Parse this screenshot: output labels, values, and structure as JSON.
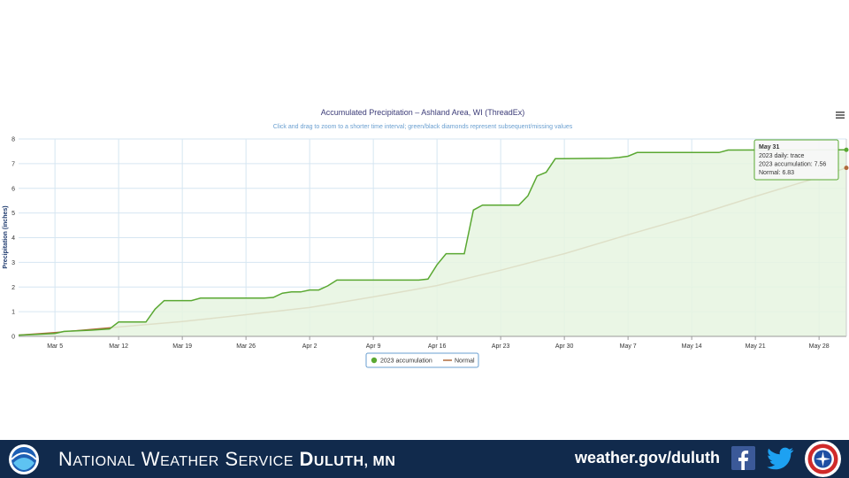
{
  "chart_data": {
    "type": "area",
    "title": "Accumulated Precipitation – Ashland Area, WI (ThreadEx)",
    "subtitle": "Click and drag to zoom to a shorter time interval; green/black diamonds represent subsequent/missing values",
    "ylabel": "Precipitation (inches)",
    "xlabel": "",
    "ylim": [
      0,
      8
    ],
    "yticks": [
      "0",
      "1",
      "2",
      "3",
      "4",
      "5",
      "6",
      "7",
      "8"
    ],
    "xlim": [
      "2023-03-01",
      "2023-05-31"
    ],
    "xticks": [
      {
        "label": "Mar 5",
        "date": "2023-03-05"
      },
      {
        "label": "Mar 12",
        "date": "2023-03-12"
      },
      {
        "label": "Mar 19",
        "date": "2023-03-19"
      },
      {
        "label": "Mar 26",
        "date": "2023-03-26"
      },
      {
        "label": "Apr 2",
        "date": "2023-04-02"
      },
      {
        "label": "Apr 9",
        "date": "2023-04-09"
      },
      {
        "label": "Apr 16",
        "date": "2023-04-16"
      },
      {
        "label": "Apr 23",
        "date": "2023-04-23"
      },
      {
        "label": "Apr 30",
        "date": "2023-04-30"
      },
      {
        "label": "May 7",
        "date": "2023-05-07"
      },
      {
        "label": "May 14",
        "date": "2023-05-14"
      },
      {
        "label": "May 21",
        "date": "2023-05-21"
      },
      {
        "label": "May 28",
        "date": "2023-05-28"
      }
    ],
    "grid": true,
    "legend_position": "bottom-center",
    "series": [
      {
        "name": "2023 accumulation",
        "color": "#5aa832",
        "fill": "#e6f4e0",
        "points": [
          [
            "2023-03-01",
            0.05
          ],
          [
            "2023-03-03",
            0.08
          ],
          [
            "2023-03-05",
            0.12
          ],
          [
            "2023-03-06",
            0.2
          ],
          [
            "2023-03-09",
            0.25
          ],
          [
            "2023-03-11",
            0.3
          ],
          [
            "2023-03-12",
            0.58
          ],
          [
            "2023-03-15",
            0.58
          ],
          [
            "2023-03-16",
            1.1
          ],
          [
            "2023-03-17",
            1.45
          ],
          [
            "2023-03-20",
            1.45
          ],
          [
            "2023-03-21",
            1.55
          ],
          [
            "2023-03-28",
            1.55
          ],
          [
            "2023-03-29",
            1.58
          ],
          [
            "2023-03-30",
            1.75
          ],
          [
            "2023-03-31",
            1.8
          ],
          [
            "2023-04-01",
            1.8
          ],
          [
            "2023-04-02",
            1.88
          ],
          [
            "2023-04-03",
            1.88
          ],
          [
            "2023-04-04",
            2.05
          ],
          [
            "2023-04-05",
            2.28
          ],
          [
            "2023-04-14",
            2.28
          ],
          [
            "2023-04-15",
            2.32
          ],
          [
            "2023-04-16",
            2.9
          ],
          [
            "2023-04-17",
            3.35
          ],
          [
            "2023-04-19",
            3.35
          ],
          [
            "2023-04-20",
            5.12
          ],
          [
            "2023-04-21",
            5.32
          ],
          [
            "2023-04-25",
            5.32
          ],
          [
            "2023-04-26",
            5.7
          ],
          [
            "2023-04-27",
            6.5
          ],
          [
            "2023-04-28",
            6.65
          ],
          [
            "2023-04-29",
            7.2
          ],
          [
            "2023-05-05",
            7.22
          ],
          [
            "2023-05-06",
            7.25
          ],
          [
            "2023-05-07",
            7.3
          ],
          [
            "2023-05-08",
            7.45
          ],
          [
            "2023-05-17",
            7.45
          ],
          [
            "2023-05-18",
            7.55
          ],
          [
            "2023-05-31",
            7.56
          ]
        ]
      },
      {
        "name": "Normal",
        "color": "#b06a3c",
        "points": [
          [
            "2023-03-01",
            0.05
          ],
          [
            "2023-03-05",
            0.15
          ],
          [
            "2023-03-12",
            0.38
          ],
          [
            "2023-03-19",
            0.6
          ],
          [
            "2023-03-26",
            0.88
          ],
          [
            "2023-04-02",
            1.17
          ],
          [
            "2023-04-09",
            1.6
          ],
          [
            "2023-04-16",
            2.06
          ],
          [
            "2023-04-23",
            2.68
          ],
          [
            "2023-04-30",
            3.35
          ],
          [
            "2023-05-07",
            4.12
          ],
          [
            "2023-05-14",
            4.86
          ],
          [
            "2023-05-21",
            5.67
          ],
          [
            "2023-05-28",
            6.45
          ],
          [
            "2023-05-31",
            6.83
          ]
        ]
      }
    ],
    "tooltip": {
      "title": "May 31",
      "lines": [
        "2023 daily: trace",
        "2023 accumulation: 7.56",
        "Normal: 6.83"
      ]
    }
  },
  "footer": {
    "agency_initial_1": "N",
    "agency_rest_1": "ATIONAL",
    "agency_initial_2": "W",
    "agency_rest_2": "EATHER",
    "agency_initial_3": "S",
    "agency_rest_3": "ERVICE",
    "office_initial": "D",
    "office_rest": "ULUTH, MN",
    "url": "weather.gov/duluth",
    "facebook_icon": "facebook-icon",
    "twitter_icon": "twitter-icon",
    "noaa_logo": "noaa-logo",
    "nws_logo": "nws-logo",
    "colors": {
      "bar": "#112a4c",
      "facebook": "#3b5998",
      "twitter": "#1da1f2"
    }
  }
}
